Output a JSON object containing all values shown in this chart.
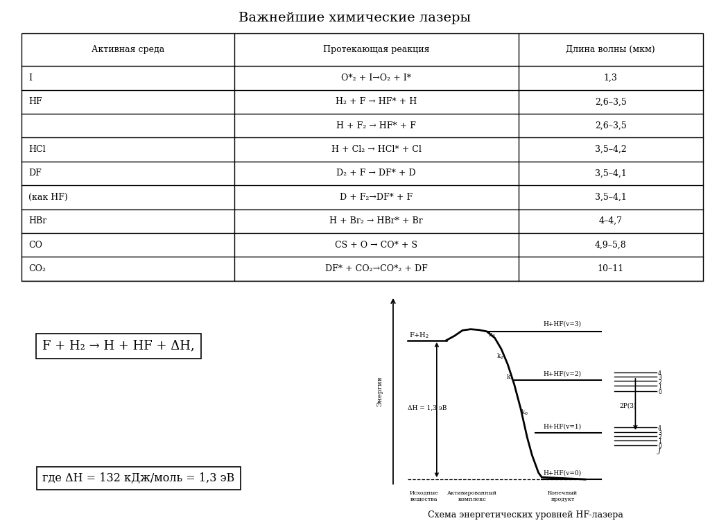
{
  "title": "Важнейшие химические лазеры",
  "bg_color_top": "#ffffff",
  "bg_color_bottom": "#9a9645",
  "table_headers": [
    "Активная среда",
    "Протекающая реакция",
    "Длина волны (мкм)"
  ],
  "table_rows": [
    [
      "I",
      "O*₂ + I→O₂ + I*",
      "1,3"
    ],
    [
      "HF",
      "H₂ + F → HF* + H",
      "2,6–3,5"
    ],
    [
      "",
      "H + F₂ → HF* + F",
      "2,6–3,5"
    ],
    [
      "HCl",
      "H + Cl₂ → HCl* + Cl",
      "3,5–4,2"
    ],
    [
      "DF",
      "D₂ + F → DF* + D",
      "3,5–4,1"
    ],
    [
      "(как HF)",
      "D + F₂→DF* + F",
      "3,5–4,1"
    ],
    [
      "HBr",
      "H + Br₂ → HBr* + Br",
      "4–4,7"
    ],
    [
      "CO",
      "CS + O → CO* + S",
      "4,9–5,8"
    ],
    [
      "CO₂",
      "DF* + CO₂→CO*₂ + DF",
      "10–11"
    ]
  ],
  "formula1": "F + H₂ → H + HF + ΔH,",
  "formula2": "где ΔH = 132 кДж/моль = 1,3 эВ",
  "diagram_caption": "Схема энергетических уровней HF-лазера"
}
